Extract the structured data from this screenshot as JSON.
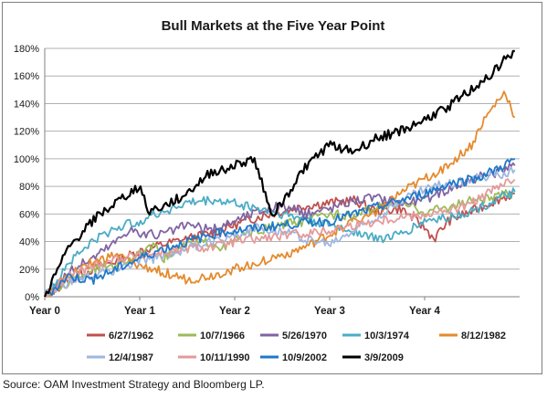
{
  "chart_data": {
    "type": "line",
    "title": "Bull Markets at the Five Year Point",
    "xlabel": "",
    "ylabel": "",
    "x_ticks": [
      "Year 0",
      "Year 1",
      "Year 2",
      "Year 3",
      "Year 4"
    ],
    "xlim": [
      0,
      5
    ],
    "ylim": [
      0,
      180
    ],
    "y_ticks": [
      "0%",
      "20%",
      "40%",
      "60%",
      "80%",
      "100%",
      "120%",
      "140%",
      "160%",
      "180%"
    ],
    "grid": true,
    "legend_position": "bottom",
    "series": [
      {
        "name": "6/27/1962",
        "color": "#c0504d",
        "x": [
          0,
          0.25,
          0.5,
          0.75,
          1,
          1.25,
          1.5,
          1.75,
          2,
          2.25,
          2.5,
          2.75,
          3,
          3.25,
          3.5,
          3.75,
          4,
          4.1,
          4.25,
          4.5,
          4.75,
          4.95
        ],
        "y": [
          0,
          12,
          20,
          26,
          33,
          38,
          42,
          46,
          52,
          58,
          62,
          66,
          68,
          70,
          62,
          64,
          50,
          42,
          55,
          62,
          70,
          75
        ]
      },
      {
        "name": "10/7/1966",
        "color": "#9bbb59",
        "x": [
          0,
          0.25,
          0.5,
          0.75,
          1,
          1.15,
          1.25,
          1.5,
          1.75,
          1.9,
          2,
          2.25,
          2.5,
          2.75,
          3,
          3.25,
          3.5,
          3.75,
          4,
          4.25,
          4.5,
          4.75,
          4.95
        ],
        "y": [
          0,
          10,
          20,
          24,
          30,
          36,
          28,
          38,
          40,
          35,
          42,
          48,
          52,
          55,
          60,
          58,
          65,
          68,
          62,
          65,
          70,
          72,
          77
        ]
      },
      {
        "name": "5/26/1970",
        "color": "#8064a2",
        "x": [
          0,
          0.25,
          0.5,
          0.75,
          0.9,
          1,
          1.25,
          1.5,
          1.75,
          2,
          2.25,
          2.5,
          2.75,
          3,
          3.25,
          3.5,
          3.75,
          4,
          4.25,
          4.5,
          4.75,
          4.95
        ],
        "y": [
          0,
          18,
          28,
          40,
          50,
          45,
          45,
          52,
          48,
          55,
          62,
          66,
          60,
          64,
          70,
          72,
          68,
          70,
          78,
          85,
          90,
          95
        ]
      },
      {
        "name": "10/3/1974",
        "color": "#4bacc6",
        "x": [
          0,
          0.25,
          0.5,
          0.75,
          1,
          1.25,
          1.5,
          1.75,
          2,
          2.25,
          2.5,
          2.75,
          3,
          3.25,
          3.5,
          3.75,
          4,
          4.25,
          4.5,
          4.75,
          4.95
        ],
        "y": [
          0,
          25,
          40,
          50,
          55,
          62,
          68,
          70,
          68,
          64,
          60,
          56,
          52,
          48,
          42,
          45,
          55,
          58,
          62,
          70,
          76
        ]
      },
      {
        "name": "8/12/1982",
        "color": "#e48a2d",
        "x": [
          0,
          0.25,
          0.5,
          0.75,
          1,
          1.25,
          1.5,
          1.75,
          2,
          2.25,
          2.5,
          2.75,
          3,
          3.25,
          3.5,
          3.75,
          4,
          4.25,
          4.5,
          4.6,
          4.75,
          4.85,
          4.95
        ],
        "y": [
          0,
          15,
          25,
          30,
          22,
          18,
          12,
          15,
          20,
          25,
          30,
          36,
          45,
          55,
          62,
          75,
          85,
          95,
          110,
          125,
          140,
          148,
          130
        ]
      },
      {
        "name": "12/4/1987",
        "color": "#9fb6e0",
        "x": [
          0,
          0.25,
          0.5,
          0.75,
          1,
          1.25,
          1.5,
          1.75,
          2,
          2.25,
          2.5,
          2.75,
          3,
          3.25,
          3.5,
          3.75,
          4,
          4.25,
          4.5,
          4.75,
          4.95
        ],
        "y": [
          0,
          10,
          15,
          20,
          25,
          30,
          35,
          40,
          45,
          50,
          48,
          42,
          38,
          48,
          58,
          70,
          78,
          82,
          85,
          88,
          92
        ]
      },
      {
        "name": "10/11/1990",
        "color": "#e59a9a",
        "x": [
          0,
          0.25,
          0.5,
          0.75,
          1,
          1.25,
          1.5,
          1.75,
          2,
          2.25,
          2.5,
          2.75,
          3,
          3.25,
          3.5,
          3.75,
          4,
          4.25,
          4.5,
          4.75,
          4.95
        ],
        "y": [
          0,
          15,
          22,
          28,
          30,
          32,
          35,
          36,
          40,
          42,
          44,
          46,
          48,
          52,
          55,
          58,
          60,
          62,
          68,
          78,
          85
        ]
      },
      {
        "name": "10/9/2002",
        "color": "#1f78c8",
        "x": [
          0,
          0.25,
          0.5,
          0.75,
          1,
          1.25,
          1.5,
          1.75,
          2,
          2.25,
          2.5,
          2.75,
          3,
          3.25,
          3.5,
          3.75,
          4,
          4.25,
          4.5,
          4.75,
          4.95
        ],
        "y": [
          0,
          15,
          12,
          20,
          28,
          35,
          40,
          45,
          48,
          50,
          52,
          54,
          55,
          60,
          65,
          70,
          75,
          82,
          85,
          92,
          100
        ]
      },
      {
        "name": "3/9/2009",
        "color": "#000000",
        "x": [
          0,
          0.25,
          0.5,
          0.75,
          1,
          1.1,
          1.25,
          1.5,
          1.75,
          2,
          2.2,
          2.4,
          2.5,
          2.75,
          3,
          3.25,
          3.5,
          3.75,
          4,
          4.25,
          4.5,
          4.75,
          4.85,
          4.95
        ],
        "y": [
          0,
          35,
          55,
          68,
          80,
          62,
          65,
          75,
          90,
          95,
          100,
          60,
          68,
          95,
          110,
          105,
          115,
          120,
          128,
          138,
          150,
          165,
          172,
          178
        ]
      }
    ]
  },
  "source_note": "Source: OAM Investment Strategy and Bloomberg LP."
}
